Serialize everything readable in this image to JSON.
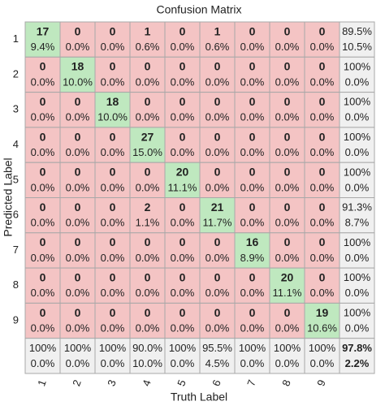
{
  "chart_data": {
    "type": "confusion_matrix",
    "title": "Confusion Matrix",
    "xlabel": "Truth Label",
    "ylabel": "Predicted Label",
    "categories": [
      "1",
      "2",
      "3",
      "4",
      "5",
      "6",
      "7",
      "8",
      "9"
    ],
    "counts": [
      [
        17,
        0,
        0,
        1,
        0,
        1,
        0,
        0,
        0
      ],
      [
        0,
        18,
        0,
        0,
        0,
        0,
        0,
        0,
        0
      ],
      [
        0,
        0,
        18,
        0,
        0,
        0,
        0,
        0,
        0
      ],
      [
        0,
        0,
        0,
        27,
        0,
        0,
        0,
        0,
        0
      ],
      [
        0,
        0,
        0,
        0,
        20,
        0,
        0,
        0,
        0
      ],
      [
        0,
        0,
        0,
        2,
        0,
        21,
        0,
        0,
        0
      ],
      [
        0,
        0,
        0,
        0,
        0,
        0,
        16,
        0,
        0
      ],
      [
        0,
        0,
        0,
        0,
        0,
        0,
        0,
        20,
        0
      ],
      [
        0,
        0,
        0,
        0,
        0,
        0,
        0,
        0,
        19
      ]
    ],
    "percents": [
      [
        9.4,
        0,
        0,
        0.6,
        0,
        0.6,
        0,
        0,
        0
      ],
      [
        0,
        10.0,
        0,
        0,
        0,
        0,
        0,
        0,
        0
      ],
      [
        0,
        0,
        10.0,
        0,
        0,
        0,
        0,
        0,
        0
      ],
      [
        0,
        0,
        0,
        15.0,
        0,
        0,
        0,
        0,
        0
      ],
      [
        0,
        0,
        0,
        0,
        11.1,
        0,
        0,
        0,
        0
      ],
      [
        0,
        0,
        0,
        1.1,
        0,
        11.7,
        0,
        0,
        0
      ],
      [
        0,
        0,
        0,
        0,
        0,
        0,
        8.9,
        0,
        0
      ],
      [
        0,
        0,
        0,
        0,
        0,
        0,
        0,
        11.1,
        0
      ],
      [
        0,
        0,
        0,
        0,
        0,
        0,
        0,
        0,
        10.6
      ]
    ],
    "percent_labels": [
      [
        "9.4%",
        "0.0%",
        "0.0%",
        "0.6%",
        "0.0%",
        "0.6%",
        "0.0%",
        "0.0%",
        "0.0%"
      ],
      [
        "0.0%",
        "10.0%",
        "0.0%",
        "0.0%",
        "0.0%",
        "0.0%",
        "0.0%",
        "0.0%",
        "0.0%"
      ],
      [
        "0.0%",
        "0.0%",
        "10.0%",
        "0.0%",
        "0.0%",
        "0.0%",
        "0.0%",
        "0.0%",
        "0.0%"
      ],
      [
        "0.0%",
        "0.0%",
        "0.0%",
        "15.0%",
        "0.0%",
        "0.0%",
        "0.0%",
        "0.0%",
        "0.0%"
      ],
      [
        "0.0%",
        "0.0%",
        "0.0%",
        "0.0%",
        "11.1%",
        "0.0%",
        "0.0%",
        "0.0%",
        "0.0%"
      ],
      [
        "0.0%",
        "0.0%",
        "0.0%",
        "1.1%",
        "0.0%",
        "11.7%",
        "0.0%",
        "0.0%",
        "0.0%"
      ],
      [
        "0.0%",
        "0.0%",
        "0.0%",
        "0.0%",
        "0.0%",
        "0.0%",
        "8.9%",
        "0.0%",
        "0.0%"
      ],
      [
        "0.0%",
        "0.0%",
        "0.0%",
        "0.0%",
        "0.0%",
        "0.0%",
        "0.0%",
        "11.1%",
        "0.0%"
      ],
      [
        "0.0%",
        "0.0%",
        "0.0%",
        "0.0%",
        "0.0%",
        "0.0%",
        "0.0%",
        "0.0%",
        "10.6%"
      ]
    ],
    "row_correct": [
      89.5,
      100,
      100,
      100,
      100,
      91.3,
      100,
      100,
      100
    ],
    "row_correct_labels": [
      "89.5%",
      "100%",
      "100%",
      "100%",
      "100%",
      "91.3%",
      "100%",
      "100%",
      "100%"
    ],
    "row_error": [
      10.5,
      0,
      0,
      0,
      0,
      8.7,
      0,
      0,
      0
    ],
    "row_error_labels": [
      "10.5%",
      "0.0%",
      "0.0%",
      "0.0%",
      "0.0%",
      "8.7%",
      "0.0%",
      "0.0%",
      "0.0%"
    ],
    "col_correct": [
      100,
      100,
      100,
      90.0,
      100,
      95.5,
      100,
      100,
      100
    ],
    "col_correct_labels": [
      "100%",
      "100%",
      "100%",
      "90.0%",
      "100%",
      "95.5%",
      "100%",
      "100%",
      "100%"
    ],
    "col_error": [
      0,
      0,
      0,
      10.0,
      0,
      4.5,
      0,
      0,
      0
    ],
    "col_error_labels": [
      "0.0%",
      "0.0%",
      "0.0%",
      "10.0%",
      "0.0%",
      "4.5%",
      "0.0%",
      "0.0%",
      "0.0%"
    ],
    "overall_correct": 97.8,
    "overall_correct_label": "97.8%",
    "overall_error": 2.2,
    "overall_error_label": "2.2%",
    "colors": {
      "diagonal": "#bfe8bf",
      "off_diagonal": "#f4c4c4",
      "summary": "#f0f0f0",
      "correct_text": "#2e9e2e",
      "error_text": "#d83a2e",
      "border": "#a8a8a8"
    }
  }
}
